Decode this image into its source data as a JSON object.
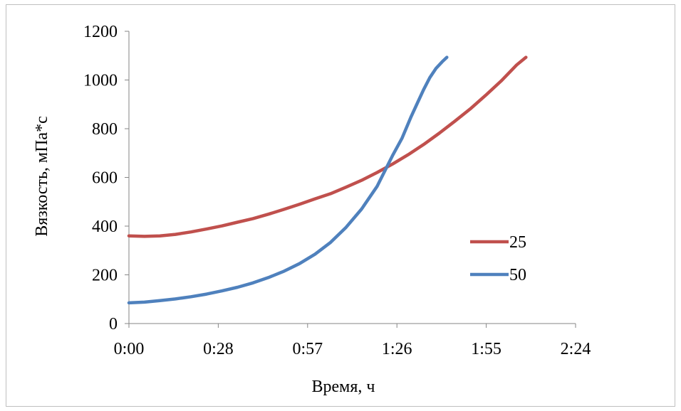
{
  "chart_data": {
    "type": "line",
    "xlabel": "Время, ч",
    "ylabel": "Вязкость, мПа*с",
    "xlim": [
      0,
      144
    ],
    "ylim": [
      0,
      1200
    ],
    "x_ticks": [
      {
        "value": 0,
        "label": "0:00"
      },
      {
        "value": 28.8,
        "label": "0:28"
      },
      {
        "value": 57.6,
        "label": "0:57"
      },
      {
        "value": 86.4,
        "label": "1:26"
      },
      {
        "value": 115.2,
        "label": "1:55"
      },
      {
        "value": 144,
        "label": "2:24"
      }
    ],
    "y_ticks": [
      0,
      200,
      400,
      600,
      800,
      1000,
      1200
    ],
    "grid": false,
    "legend_position": "right",
    "series": [
      {
        "name": "25",
        "color": "#c0504d",
        "x": [
          0,
          5,
          10,
          15,
          20,
          25,
          30,
          35,
          40,
          45,
          50,
          55,
          60,
          65,
          70,
          75,
          80,
          85,
          90,
          95,
          100,
          105,
          110,
          115,
          120,
          125,
          128
        ],
        "y": [
          360,
          358,
          360,
          366,
          376,
          388,
          401,
          416,
          431,
          449,
          469,
          490,
          512,
          533,
          560,
          588,
          620,
          655,
          693,
          735,
          781,
          830,
          881,
          937,
          996,
          1062,
          1093
        ]
      },
      {
        "name": "50",
        "color": "#4f81bd",
        "x": [
          0,
          5,
          10,
          15,
          20,
          25,
          30,
          35,
          40,
          45,
          50,
          55,
          60,
          65,
          70,
          75,
          80,
          85,
          88,
          91,
          93,
          95,
          97,
          99,
          101,
          102.5
        ],
        "y": [
          85,
          88,
          94,
          101,
          110,
          121,
          134,
          149,
          167,
          189,
          215,
          246,
          285,
          333,
          395,
          470,
          563,
          690,
          760,
          850,
          905,
          960,
          1010,
          1048,
          1075,
          1093
        ]
      }
    ]
  }
}
